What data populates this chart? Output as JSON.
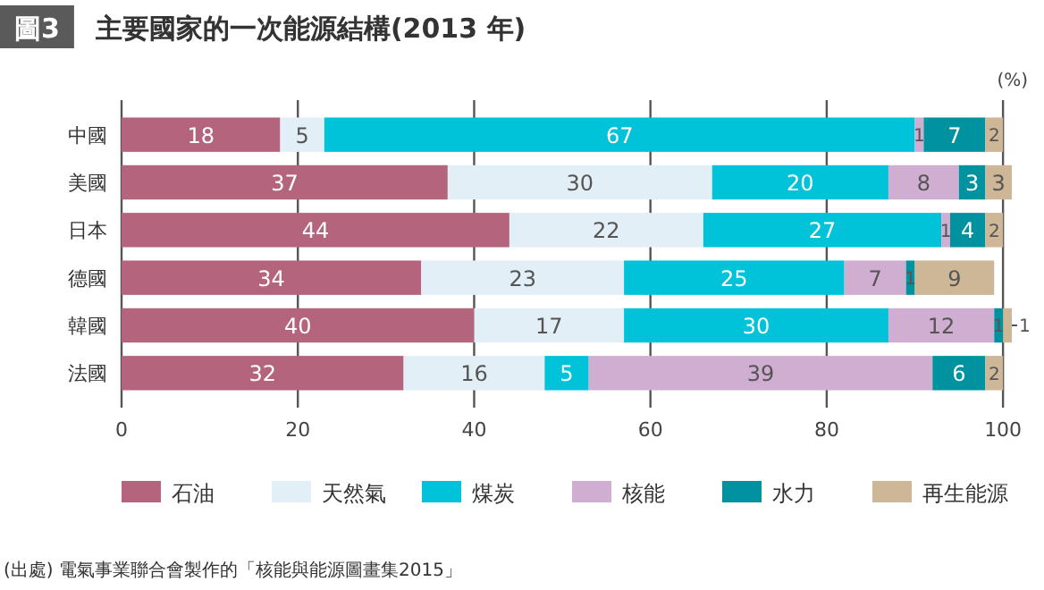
{
  "chart_data": {
    "type": "bar",
    "orientation": "horizontal",
    "stacked": true,
    "title": "主要國家的一次能源結構(2013 年)",
    "xlabel": "(%)",
    "annotations": [
      "圖3",
      "(出處) 電氣事業聯合會製作的「核能與能源圖畫集2015」"
    ],
    "categories": [
      "中國",
      "美國",
      "日本",
      "德國",
      "韓國",
      "法國"
    ],
    "series": [
      {
        "name": "石油",
        "color": "#b5647e",
        "values": [
          18,
          37,
          44,
          34,
          40,
          32
        ]
      },
      {
        "name": "天然氣",
        "color": "#e3eff7",
        "values": [
          5,
          30,
          22,
          23,
          17,
          16
        ]
      },
      {
        "name": "煤炭",
        "color": "#00c2d8",
        "values": [
          67,
          20,
          27,
          25,
          30,
          5
        ]
      },
      {
        "name": "核能",
        "color": "#d0aed1",
        "values": [
          1,
          8,
          1,
          7,
          12,
          39
        ]
      },
      {
        "name": "水力",
        "color": "#00939f",
        "values": [
          7,
          3,
          4,
          1,
          1,
          6
        ]
      },
      {
        "name": "再生能源",
        "color": "#cdb796",
        "values": [
          2,
          3,
          2,
          9,
          1,
          2
        ]
      }
    ],
    "xlim": [
      0,
      101
    ],
    "xticks": [
      0,
      20,
      40,
      60,
      80,
      100
    ],
    "grid": "x",
    "data_labels": true,
    "legend": "bottom"
  }
}
